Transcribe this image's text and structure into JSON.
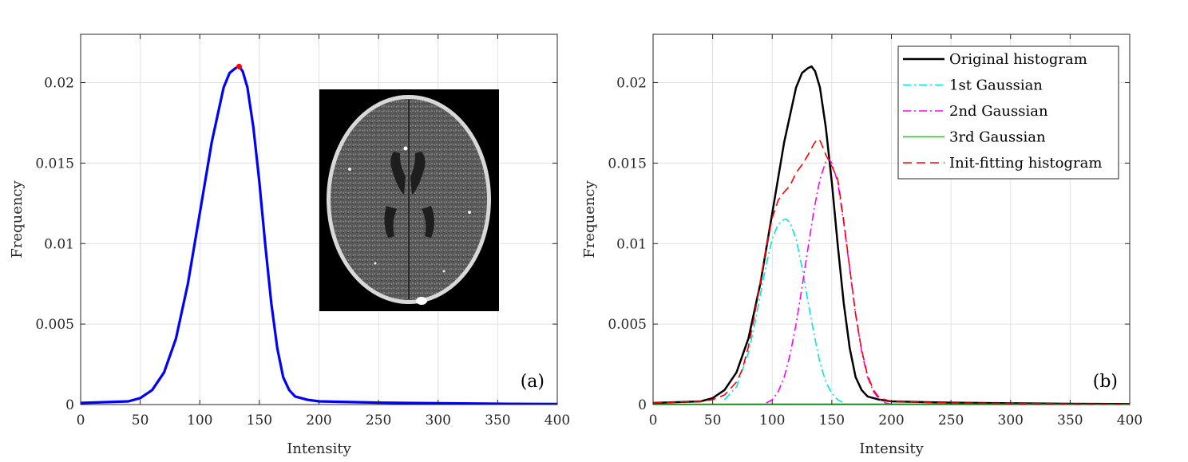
{
  "colors": {
    "density": "#0000ff",
    "peak": "#ff0000",
    "original": "#000000",
    "g1": "#00e5e5",
    "g2": "#ff00ff",
    "g3": "#00dd00",
    "init": "#ff0000"
  },
  "chart_data": [
    {
      "type": "line",
      "panel_label": "(a)",
      "xlabel": "Intensity",
      "ylabel": "Frequency",
      "xlim": [
        0,
        400
      ],
      "ylim": [
        0,
        0.023
      ],
      "xticks": [
        "0",
        "50",
        "100",
        "150",
        "200",
        "250",
        "300",
        "350",
        "400"
      ],
      "yticks": [
        "0",
        "0.005",
        "0.01",
        "0.015",
        "0.02"
      ],
      "grid": true,
      "inset": "axial brain CT image",
      "peak_point": {
        "x": 133,
        "y": 0.021
      },
      "series": [
        {
          "color_key": "density",
          "x": [
            0,
            40,
            50,
            60,
            70,
            80,
            90,
            100,
            110,
            120,
            125,
            130,
            133,
            136,
            140,
            145,
            150,
            155,
            160,
            165,
            170,
            175,
            180,
            190,
            200,
            250,
            300,
            350,
            400
          ],
          "y": [
            0.0001,
            0.0002,
            0.0004,
            0.0009,
            0.002,
            0.0041,
            0.0075,
            0.0119,
            0.0163,
            0.0197,
            0.0206,
            0.0209,
            0.021,
            0.0207,
            0.0197,
            0.0172,
            0.0138,
            0.0099,
            0.0063,
            0.0035,
            0.0017,
            0.0009,
            0.0005,
            0.0003,
            0.0002,
            0.00012,
            8e-05,
            5e-05,
            3e-05
          ]
        }
      ]
    },
    {
      "type": "line",
      "panel_label": "(b)",
      "xlabel": "Intensity",
      "ylabel": "Frequency",
      "xlim": [
        0,
        400
      ],
      "ylim": [
        0,
        0.023
      ],
      "xticks": [
        "0",
        "50",
        "100",
        "150",
        "200",
        "250",
        "300",
        "350",
        "400"
      ],
      "yticks": [
        "0",
        "0.005",
        "0.01",
        "0.015",
        "0.02"
      ],
      "grid": true,
      "legend_position": "top-right",
      "series": [
        {
          "name": "Original histogram",
          "color_key": "original",
          "dash": "solid",
          "x": [
            0,
            40,
            50,
            60,
            70,
            80,
            90,
            100,
            110,
            120,
            125,
            130,
            133,
            136,
            140,
            145,
            150,
            155,
            160,
            165,
            170,
            175,
            180,
            190,
            200,
            250,
            300,
            350,
            400
          ],
          "y": [
            0.0001,
            0.0002,
            0.0004,
            0.0009,
            0.002,
            0.0041,
            0.0075,
            0.0119,
            0.0163,
            0.0197,
            0.0206,
            0.0209,
            0.021,
            0.0207,
            0.0197,
            0.0172,
            0.0138,
            0.0099,
            0.0063,
            0.0035,
            0.0017,
            0.0009,
            0.0005,
            0.0003,
            0.0002,
            0.00012,
            8e-05,
            5e-05,
            3e-05
          ]
        },
        {
          "name": "1st Gaussian",
          "color_key": "g1",
          "dash": "dashdot",
          "x": [
            60,
            70,
            80,
            85,
            90,
            95,
            100,
            105,
            110,
            112,
            115,
            120,
            125,
            130,
            135,
            140,
            145,
            150,
            155,
            160
          ],
          "y": [
            0.0003,
            0.0011,
            0.0032,
            0.0049,
            0.0068,
            0.0087,
            0.0103,
            0.0112,
            0.0115,
            0.0115,
            0.0113,
            0.0103,
            0.0085,
            0.0064,
            0.0044,
            0.0026,
            0.0014,
            0.0007,
            0.0003,
            0.0001
          ]
        },
        {
          "name": "2nd Gaussian",
          "color_key": "g2",
          "dash": "dashdot",
          "x": [
            95,
            100,
            105,
            110,
            115,
            120,
            125,
            130,
            135,
            140,
            145,
            147,
            150,
            155,
            160,
            165,
            170,
            175,
            180,
            185,
            190,
            195,
            200
          ],
          "y": [
            0.0001,
            0.0003,
            0.0008,
            0.0017,
            0.0031,
            0.005,
            0.0073,
            0.0097,
            0.0121,
            0.014,
            0.0151,
            0.0153,
            0.015,
            0.0138,
            0.0113,
            0.0084,
            0.0056,
            0.0033,
            0.0017,
            0.0008,
            0.0003,
            0.0001,
            3e-05
          ]
        },
        {
          "name": "3rd Gaussian",
          "color_key": "g3",
          "dash": "solid",
          "x": [
            0,
            100,
            200,
            300,
            400
          ],
          "y": [
            1e-05,
            3e-05,
            3e-05,
            2e-05,
            1e-05
          ]
        },
        {
          "name": "Init-fitting histogram",
          "color_key": "init",
          "dash": "dashed",
          "x": [
            0,
            40,
            50,
            60,
            70,
            75,
            80,
            85,
            90,
            95,
            100,
            105,
            110,
            115,
            120,
            125,
            130,
            135,
            138,
            140,
            143,
            145,
            148,
            150,
            155,
            160,
            165,
            170,
            175,
            180,
            185,
            190,
            200,
            250,
            300,
            350,
            400
          ],
          "y": [
            0.0001,
            0.0002,
            0.0003,
            0.0006,
            0.0014,
            0.0022,
            0.0036,
            0.0055,
            0.0076,
            0.0098,
            0.0116,
            0.0127,
            0.0132,
            0.0136,
            0.0144,
            0.0149,
            0.0155,
            0.0162,
            0.0165,
            0.0164,
            0.0159,
            0.0155,
            0.0151,
            0.0148,
            0.014,
            0.0114,
            0.0085,
            0.0056,
            0.0034,
            0.0018,
            0.0009,
            0.0004,
            0.0002,
            0.0001,
            7e-05,
            4e-05,
            2e-05
          ]
        }
      ]
    }
  ]
}
